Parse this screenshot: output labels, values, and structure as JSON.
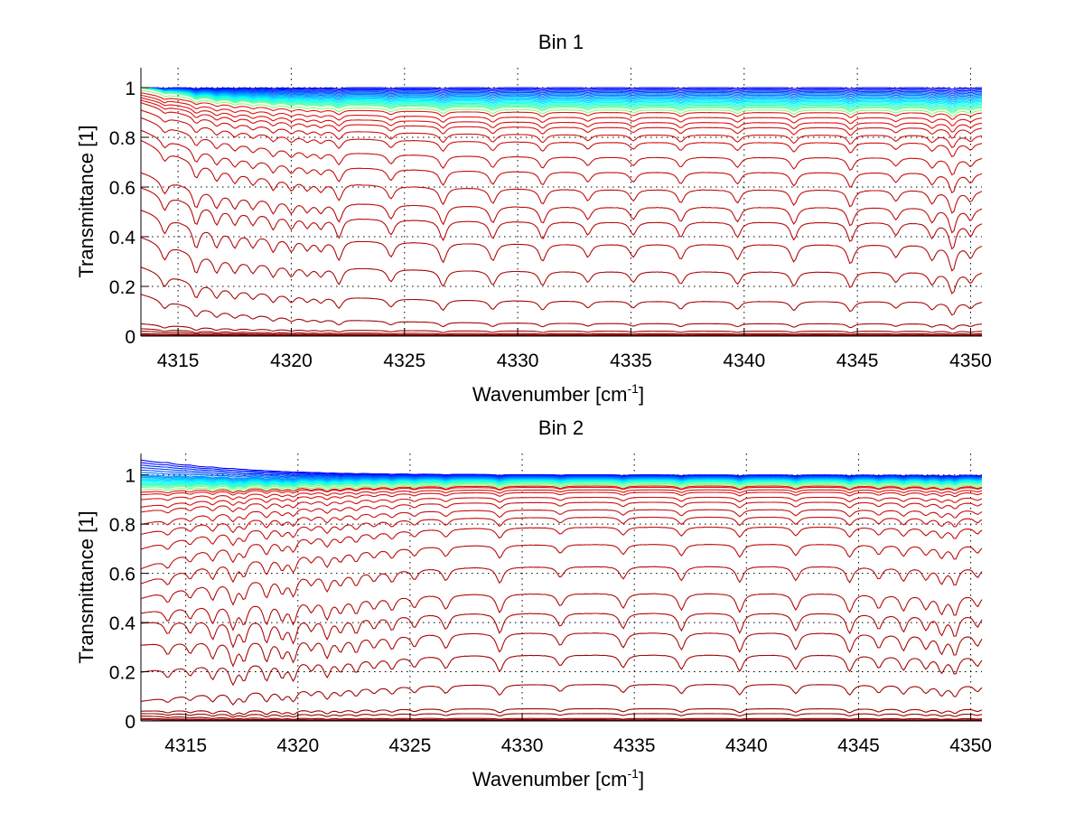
{
  "chart_data": [
    {
      "type": "line",
      "title": "Bin 1",
      "xlabel": "Wavenumber [cm",
      "xlabel_sup": "-1",
      "xlabel_close": "]",
      "ylabel": "Transmittance [1]",
      "xlim": [
        4313.36,
        4350.5
      ],
      "ylim": [
        0,
        1.08
      ],
      "xticks": [
        4315,
        4320,
        4325,
        4330,
        4335,
        4340,
        4345,
        4350
      ],
      "xtick_labels": [
        "4315",
        "4320",
        "4325",
        "4330",
        "4335",
        "4340",
        "4345",
        "4350"
      ],
      "yticks": [
        0,
        0.2,
        0.4,
        0.6,
        0.8,
        1
      ],
      "ytick_labels": [
        "0",
        "0.2",
        "0.4",
        "0.6",
        "0.8",
        "1"
      ],
      "grid": true,
      "colormap": "jet (blue → dark red) across series",
      "n_series": 40,
      "series_levels_right": [
        1.0,
        0.995,
        0.99,
        0.985,
        0.98,
        0.975,
        0.97,
        0.965,
        0.96,
        0.955,
        0.95,
        0.945,
        0.94,
        0.935,
        0.93,
        0.925,
        0.92,
        0.91,
        0.9,
        0.88,
        0.86,
        0.84,
        0.81,
        0.78,
        0.72,
        0.66,
        0.59,
        0.52,
        0.46,
        0.37,
        0.26,
        0.14,
        0.05,
        0.02,
        0.01,
        0.005,
        0.003,
        0.001,
        0.0,
        0.0
      ],
      "series_levels_left": [
        1.0,
        1.0,
        1.0,
        1.0,
        1.0,
        1.0,
        1.0,
        1.0,
        1.0,
        1.0,
        1.0,
        1.0,
        1.0,
        1.0,
        1.0,
        1.0,
        1.0,
        0.99,
        0.98,
        0.97,
        0.96,
        0.95,
        0.94,
        0.91,
        0.88,
        0.83,
        0.79,
        0.66,
        0.6,
        0.51,
        0.4,
        0.28,
        0.17,
        0.05,
        0.03,
        0.02,
        0.01,
        0.005,
        0.002,
        0.0
      ],
      "absorption_lines_cm-1": [
        4314.4,
        4315.8,
        4316.7,
        4317.5,
        4318.3,
        4319.2,
        4320.0,
        4320.7,
        4321.3,
        4322.1,
        4324.4,
        4326.7,
        4328.9,
        4331.1,
        4333.1,
        4335.1,
        4337.2,
        4339.7,
        4342.2,
        4344.7,
        4346.7,
        4348.3,
        4349.2,
        4350.0
      ],
      "line_depths": [
        0.35,
        0.5,
        0.4,
        0.35,
        0.3,
        0.35,
        0.3,
        0.25,
        0.25,
        0.45,
        0.35,
        0.45,
        0.4,
        0.4,
        0.3,
        0.3,
        0.35,
        0.35,
        0.4,
        0.45,
        0.3,
        0.35,
        0.6,
        0.3
      ]
    },
    {
      "type": "line",
      "title": "Bin 2",
      "xlabel": "Wavenumber [cm",
      "xlabel_sup": "-1",
      "xlabel_close": "]",
      "ylabel": "Transmittance [1]",
      "xlim": [
        4313.0,
        4350.5
      ],
      "ylim": [
        0,
        1.087
      ],
      "xticks": [
        4315,
        4320,
        4325,
        4330,
        4335,
        4340,
        4345,
        4350
      ],
      "xtick_labels": [
        "4315",
        "4320",
        "4325",
        "4330",
        "4335",
        "4340",
        "4345",
        "4350"
      ],
      "yticks": [
        0,
        0.2,
        0.4,
        0.6,
        0.8,
        1
      ],
      "ytick_labels": [
        "0",
        "0.2",
        "0.4",
        "0.6",
        "0.8",
        "1"
      ],
      "grid": true,
      "colormap": "jet (blue → dark red) across series",
      "n_series": 40,
      "series_levels_right": [
        1.0,
        0.998,
        0.996,
        0.994,
        0.992,
        0.99,
        0.988,
        0.986,
        0.984,
        0.982,
        0.98,
        0.978,
        0.976,
        0.974,
        0.972,
        0.97,
        0.965,
        0.96,
        0.955,
        0.95,
        0.94,
        0.93,
        0.91,
        0.89,
        0.86,
        0.83,
        0.79,
        0.72,
        0.63,
        0.52,
        0.44,
        0.36,
        0.27,
        0.15,
        0.05,
        0.03,
        0.01,
        0.005,
        0.002,
        0.0
      ],
      "series_levels_left": [
        1.06,
        1.05,
        1.04,
        1.03,
        1.02,
        1.01,
        1.0,
        0.995,
        0.99,
        0.985,
        0.98,
        0.975,
        0.97,
        0.965,
        0.96,
        0.955,
        0.95,
        0.94,
        0.93,
        0.92,
        0.9,
        0.87,
        0.85,
        0.8,
        0.76,
        0.7,
        0.62,
        0.56,
        0.5,
        0.44,
        0.4,
        0.31,
        0.2,
        0.08,
        0.04,
        0.03,
        0.02,
        0.01,
        0.005,
        0.0
      ],
      "absorption_lines_cm-1": [
        4314.2,
        4315.2,
        4316.2,
        4317.1,
        4317.6,
        4318.6,
        4319.3,
        4319.8,
        4320.6,
        4321.3,
        4321.9,
        4322.6,
        4323.4,
        4324.2,
        4325.2,
        4326.6,
        4329.0,
        4331.7,
        4334.5,
        4337.1,
        4339.7,
        4342.2,
        4344.6,
        4345.9,
        4347.0,
        4348.0,
        4348.7,
        4349.3,
        4350.3
      ],
      "line_depths": [
        0.3,
        0.3,
        0.45,
        0.6,
        0.5,
        0.55,
        0.45,
        0.55,
        0.3,
        0.5,
        0.35,
        0.4,
        0.3,
        0.35,
        0.3,
        0.35,
        0.45,
        0.3,
        0.35,
        0.4,
        0.45,
        0.4,
        0.45,
        0.35,
        0.4,
        0.35,
        0.45,
        0.5,
        0.3
      ]
    }
  ]
}
